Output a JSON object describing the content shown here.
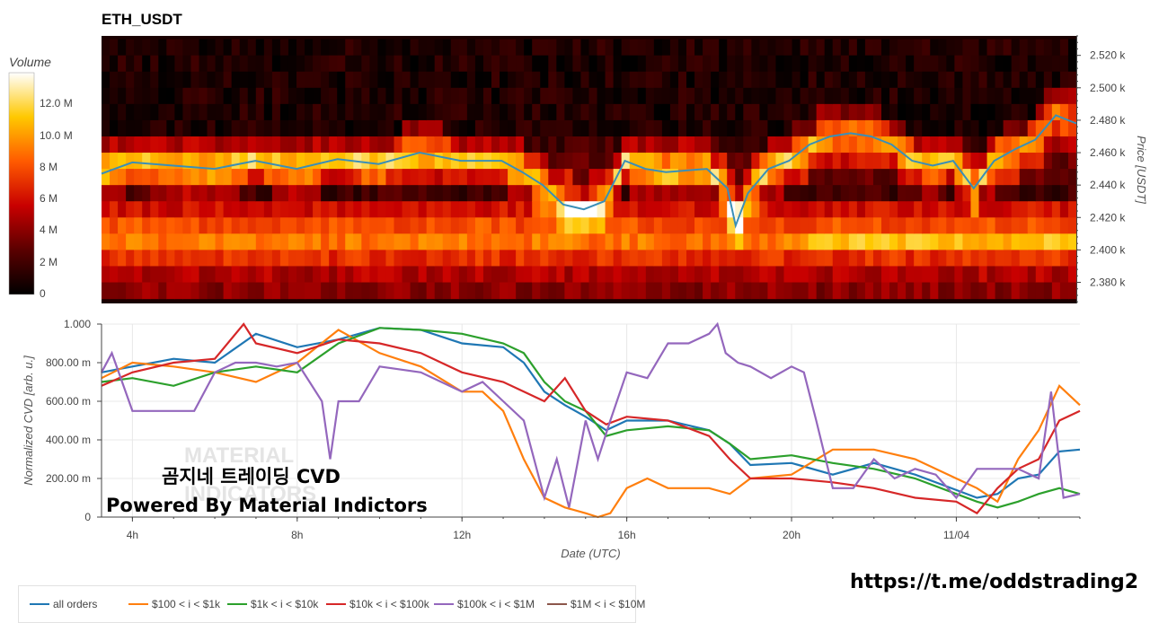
{
  "title": "ETH_USDT",
  "colorbar": {
    "title": "Volume",
    "ticks": [
      "12.0 M",
      "10.0 M",
      "8 M",
      "6 M",
      "4 M",
      "2 M",
      "0"
    ],
    "tick_values": [
      12,
      10,
      8,
      6,
      4,
      2,
      0
    ],
    "max": 14
  },
  "overlay": {
    "korean": "곰지네 트레이딩 CVD",
    "powered": "Powered By Material Indictors",
    "watermark": "MATERIAL INDICATORS",
    "link": "https://t.me/oddstrading2"
  },
  "chart_data": [
    {
      "type": "heatmap",
      "title": "ETH_USDT",
      "ylabel": "Price [USDT]",
      "ylim": [
        2367,
        2532
      ],
      "yticks": [
        2520,
        2500,
        2480,
        2460,
        2440,
        2420,
        2400,
        2380
      ],
      "ytick_labels": [
        "2.520 k",
        "2.500 k",
        "2.480 k",
        "2.460 k",
        "2.440 k",
        "2.420 k",
        "2.400 k",
        "2.380 k"
      ],
      "x_hours": [
        3.25,
        27.0
      ],
      "price_levels": [
        2525,
        2515,
        2505,
        2495,
        2485,
        2475,
        2465,
        2455,
        2445,
        2435,
        2425,
        2415,
        2405,
        2395,
        2385,
        2375
      ],
      "volume_profile_M": [
        1,
        1,
        1,
        1,
        1,
        1,
        2,
        3,
        3,
        2,
        6,
        8,
        9,
        7,
        5,
        4
      ],
      "price_line": {
        "name": "price",
        "x": [
          3.25,
          4,
          5,
          6,
          7,
          8,
          9,
          10,
          11,
          12,
          13,
          13.5,
          14,
          14.5,
          15,
          15.5,
          16,
          16.5,
          17,
          18,
          18.5,
          18.7,
          19,
          19.5,
          20,
          20.5,
          21,
          21.5,
          22,
          22.5,
          23,
          23.5,
          24,
          24.5,
          25,
          25.5,
          26,
          26.5,
          27
        ],
        "y": [
          2447,
          2454,
          2452,
          2450,
          2455,
          2450,
          2456,
          2453,
          2460,
          2455,
          2455,
          2448,
          2440,
          2428,
          2425,
          2430,
          2455,
          2450,
          2448,
          2450,
          2438,
          2415,
          2435,
          2450,
          2455,
          2465,
          2470,
          2472,
          2470,
          2465,
          2455,
          2452,
          2455,
          2438,
          2455,
          2462,
          2468,
          2483,
          2478
        ]
      }
    },
    {
      "type": "line",
      "xlabel": "Date (UTC)",
      "ylabel": "Normalized CVD [arb. u.]",
      "ylim": [
        0,
        1.0
      ],
      "xlim": [
        3.25,
        27.0
      ],
      "yticks": [
        0,
        0.2,
        0.4,
        0.6,
        0.8,
        1.0
      ],
      "ytick_labels": [
        "0",
        "200.00 m",
        "400.00 m",
        "600.00 m",
        "800.00 m",
        "1.000"
      ],
      "xticks": [
        4,
        8,
        12,
        16,
        20,
        24
      ],
      "xtick_labels": [
        "4h",
        "8h",
        "12h",
        "16h",
        "20h",
        "11/04"
      ],
      "series": [
        {
          "name": "all orders",
          "color": "#1f77b4",
          "x": [
            3.25,
            4,
            5,
            6,
            7,
            8,
            9,
            10,
            11,
            12,
            13,
            13.5,
            14,
            14.5,
            15,
            15.5,
            16,
            17,
            18,
            18.5,
            19,
            20,
            21,
            22,
            23,
            24,
            24.5,
            25,
            25.5,
            26,
            26.5,
            27
          ],
          "y": [
            0.75,
            0.78,
            0.82,
            0.8,
            0.95,
            0.88,
            0.92,
            0.98,
            0.97,
            0.9,
            0.88,
            0.8,
            0.65,
            0.58,
            0.52,
            0.45,
            0.5,
            0.5,
            0.45,
            0.38,
            0.27,
            0.28,
            0.22,
            0.28,
            0.22,
            0.14,
            0.1,
            0.12,
            0.2,
            0.22,
            0.34,
            0.35
          ]
        },
        {
          "name": "$100 < i < $1k",
          "color": "#ff7f0e",
          "x": [
            3.25,
            4,
            5,
            6,
            7,
            8,
            9,
            10,
            11,
            12,
            12.5,
            13,
            13.5,
            14,
            14.5,
            15,
            15.3,
            15.6,
            16,
            16.5,
            17,
            18,
            18.5,
            19,
            20,
            21,
            22,
            23,
            24,
            24.5,
            25,
            25.5,
            26,
            26.5,
            27
          ],
          "y": [
            0.72,
            0.8,
            0.78,
            0.75,
            0.7,
            0.8,
            0.97,
            0.85,
            0.78,
            0.65,
            0.65,
            0.55,
            0.3,
            0.1,
            0.05,
            0.02,
            0.0,
            0.02,
            0.15,
            0.2,
            0.15,
            0.15,
            0.12,
            0.2,
            0.22,
            0.35,
            0.35,
            0.3,
            0.2,
            0.15,
            0.08,
            0.3,
            0.45,
            0.68,
            0.58
          ]
        },
        {
          "name": "$1k < i < $10k",
          "color": "#2ca02c",
          "x": [
            3.25,
            4,
            5,
            6,
            7,
            8,
            9,
            10,
            11,
            12,
            13,
            13.5,
            14,
            14.5,
            15,
            15.5,
            16,
            17,
            18,
            18.5,
            19,
            20,
            21,
            22,
            23,
            24,
            24.5,
            25,
            25.5,
            26,
            26.5,
            27
          ],
          "y": [
            0.7,
            0.72,
            0.68,
            0.75,
            0.78,
            0.75,
            0.9,
            0.98,
            0.97,
            0.95,
            0.9,
            0.85,
            0.7,
            0.6,
            0.55,
            0.42,
            0.45,
            0.47,
            0.45,
            0.38,
            0.3,
            0.32,
            0.28,
            0.25,
            0.2,
            0.12,
            0.08,
            0.05,
            0.08,
            0.12,
            0.15,
            0.12
          ]
        },
        {
          "name": "$10k < i < $100k",
          "color": "#d62728",
          "x": [
            3.25,
            4,
            5,
            6,
            6.7,
            7,
            8,
            9,
            10,
            11,
            12,
            13,
            13.5,
            14,
            14.5,
            15,
            15.5,
            16,
            17,
            18,
            18.5,
            19,
            20,
            21,
            22,
            23,
            24,
            24.5,
            25,
            25.5,
            26,
            26.5,
            27
          ],
          "y": [
            0.68,
            0.75,
            0.8,
            0.82,
            1.0,
            0.9,
            0.85,
            0.92,
            0.9,
            0.85,
            0.75,
            0.7,
            0.65,
            0.6,
            0.72,
            0.55,
            0.48,
            0.52,
            0.5,
            0.42,
            0.3,
            0.2,
            0.2,
            0.18,
            0.15,
            0.1,
            0.08,
            0.02,
            0.15,
            0.25,
            0.3,
            0.5,
            0.55
          ]
        },
        {
          "name": "$100k < i < $1M",
          "color": "#9467bd",
          "x": [
            3.25,
            3.5,
            4,
            5,
            5.5,
            6,
            6.5,
            7,
            7.5,
            8,
            8.3,
            8.6,
            8.8,
            9,
            9.5,
            10,
            11,
            12,
            12.5,
            13,
            13.5,
            14,
            14.3,
            14.6,
            15,
            15.3,
            15.6,
            16,
            16.5,
            17,
            17.5,
            18,
            18.2,
            18.4,
            18.7,
            19,
            19.5,
            20,
            20.3,
            20.6,
            21,
            21.5,
            22,
            22.5,
            23,
            23.5,
            24,
            24.5,
            25,
            25.5,
            26,
            26.3,
            26.6,
            27
          ],
          "y": [
            0.75,
            0.85,
            0.55,
            0.55,
            0.55,
            0.75,
            0.8,
            0.8,
            0.78,
            0.8,
            0.7,
            0.6,
            0.3,
            0.6,
            0.6,
            0.78,
            0.75,
            0.65,
            0.7,
            0.6,
            0.5,
            0.1,
            0.3,
            0.05,
            0.5,
            0.3,
            0.5,
            0.75,
            0.72,
            0.9,
            0.9,
            0.95,
            1.0,
            0.85,
            0.8,
            0.78,
            0.72,
            0.78,
            0.75,
            0.5,
            0.15,
            0.15,
            0.3,
            0.2,
            0.25,
            0.22,
            0.1,
            0.25,
            0.25,
            0.25,
            0.2,
            0.65,
            0.1,
            0.12
          ]
        },
        {
          "name": "$1M < i < $10M",
          "color": "#8c564b",
          "x": [],
          "y": []
        }
      ]
    }
  ]
}
